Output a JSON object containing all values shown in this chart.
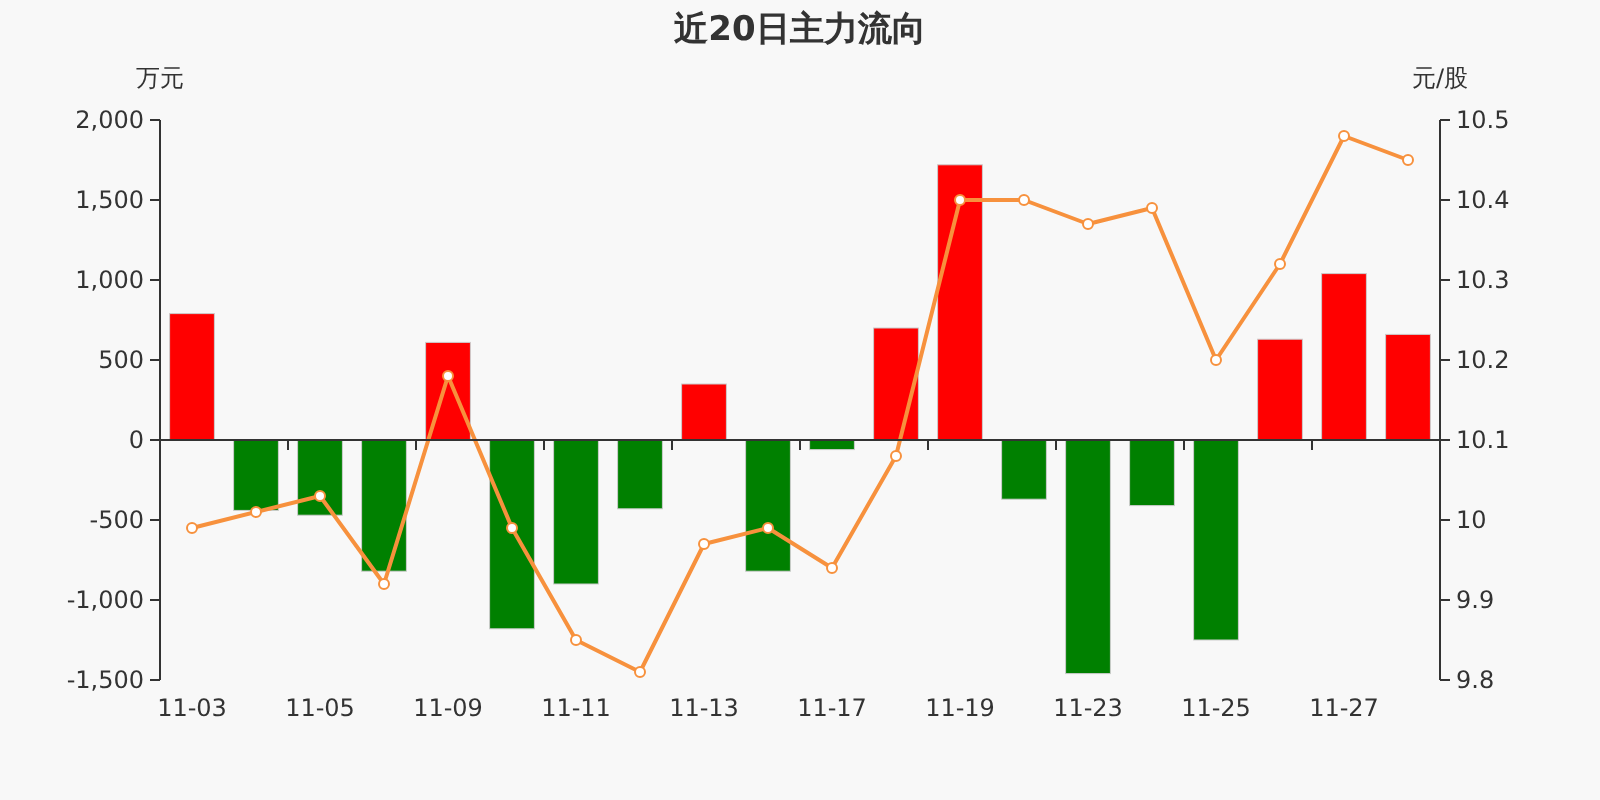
{
  "chart_data": {
    "type": "bar",
    "title": "近20日主力流向",
    "ylabel": "万元",
    "y2label": "元/股",
    "categories": [
      "11-03",
      null,
      "11-05",
      null,
      "11-09",
      null,
      "11-11",
      null,
      "11-13",
      null,
      "11-17",
      null,
      "11-19",
      null,
      "11-23",
      null,
      "11-25",
      null,
      "11-27",
      null
    ],
    "series": [
      {
        "colors": [
          "#ff0000",
          "#008000",
          "#008000",
          "#008000",
          "#ff0000",
          "#008000",
          "#008000",
          "#008000",
          "#ff0000",
          "#008000",
          "#008000",
          "#ff0000",
          "#ff0000",
          "#008000",
          "#008000",
          "#008000",
          "#008000",
          "#ff0000",
          "#ff0000",
          "#ff0000"
        ],
        "values": [
          790,
          -440,
          -470,
          -820,
          610,
          -1180,
          -900,
          -430,
          350,
          -820,
          -60,
          700,
          1720,
          -370,
          -1460,
          -410,
          -1250,
          630,
          1040,
          660
        ]
      },
      {
        "type": "line",
        "axis": "y2",
        "color": "#f7913d",
        "marker": "circle",
        "values": [
          9.99,
          10.01,
          10.03,
          9.92,
          10.18,
          9.99,
          9.85,
          9.81,
          9.97,
          9.99,
          9.94,
          10.08,
          10.4,
          10.4,
          10.37,
          10.39,
          10.2,
          10.32,
          10.48,
          10.45
        ]
      }
    ],
    "ylim": [
      -1500,
      2000
    ],
    "yticks": [
      {
        "value": -1500,
        "label": "-1,500"
      },
      {
        "value": -1000,
        "label": "-1,000"
      },
      -500,
      0,
      500,
      {
        "value": 1000,
        "label": "1,000"
      },
      {
        "value": 1500,
        "label": "1,500"
      },
      {
        "value": 2000,
        "label": "2,000"
      }
    ],
    "y2lim": [
      9.8,
      10.5
    ],
    "y2ticks": [
      9.8,
      9.9,
      10,
      10.1,
      10.2,
      10.3,
      10.4,
      10.5
    ]
  }
}
